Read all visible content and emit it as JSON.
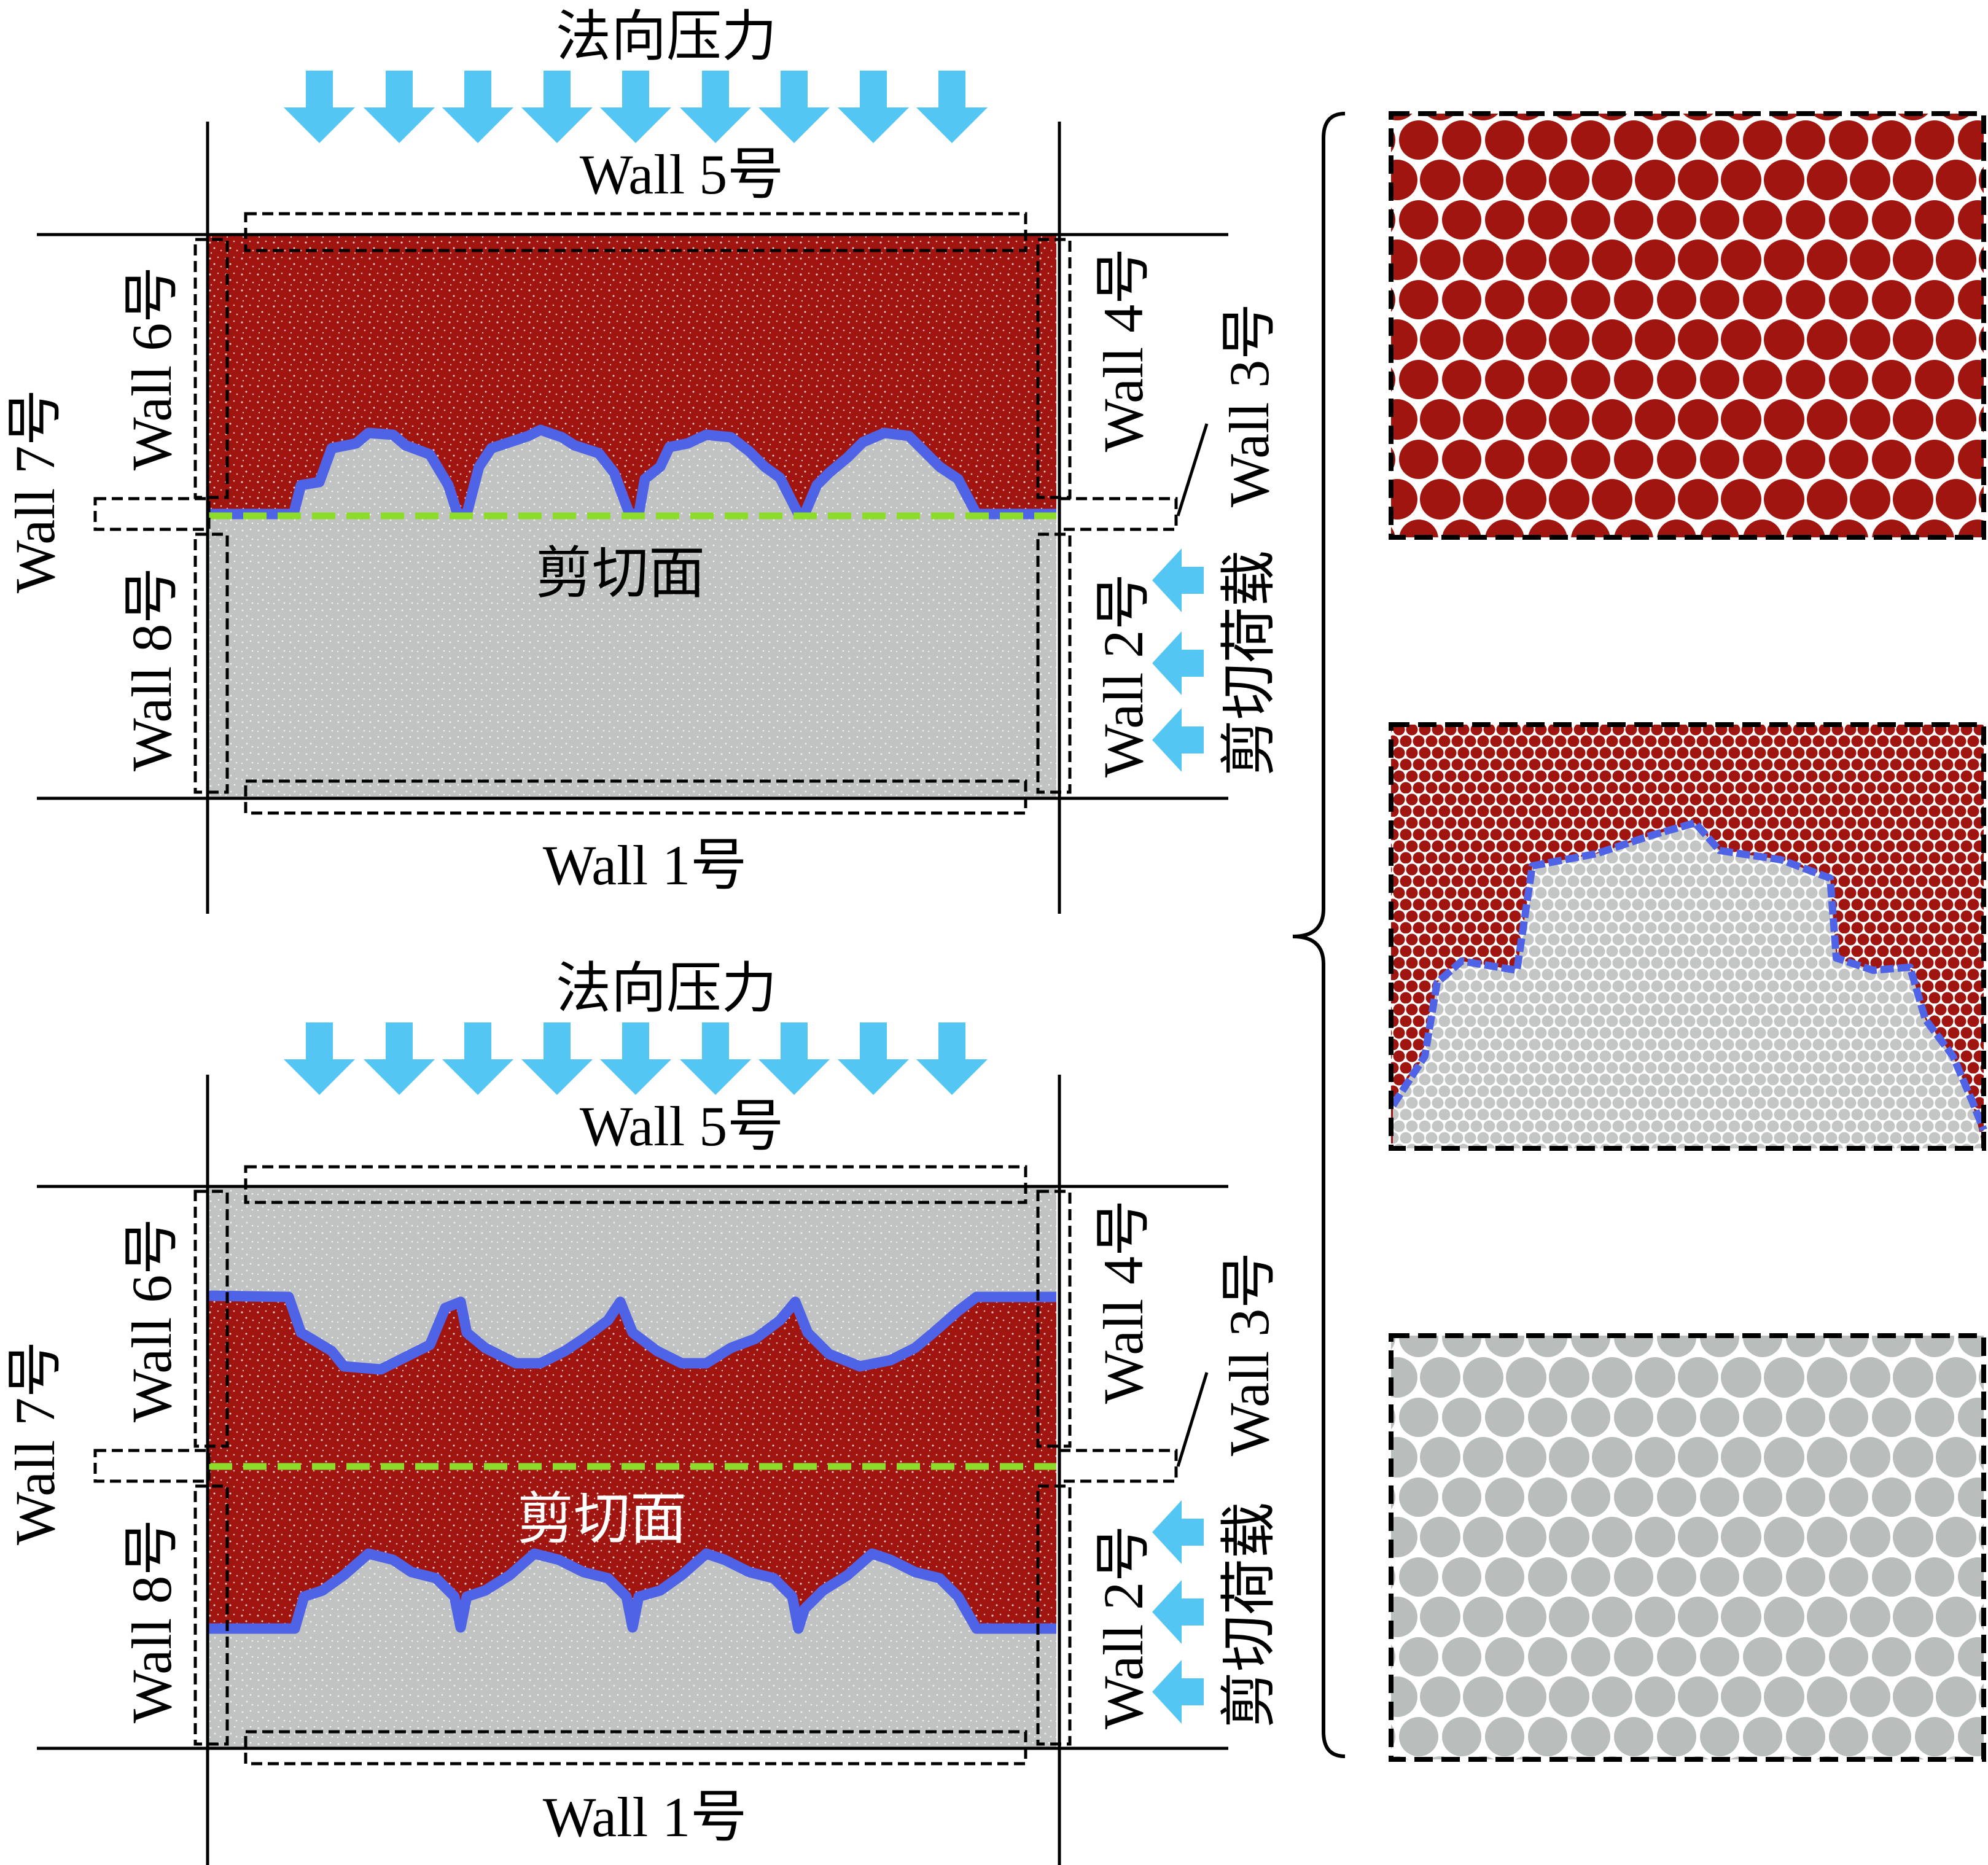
{
  "colors": {
    "red_region": "#a01510",
    "grey_region": "#c0c3c2",
    "interface_line": "#4f63e6",
    "shear_plane": "#8ddc2c",
    "arrow": "#53c6f4",
    "frame": "#000000"
  },
  "top_panel": {
    "normal_pressure_label": "法向压力",
    "wall_5": "Wall 5号",
    "wall_1": "Wall 1号",
    "wall_6": "Wall 6号",
    "wall_7": "Wall 7号",
    "wall_8": "Wall 8号",
    "wall_4": "Wall 4号",
    "wall_3": "Wall 3号",
    "wall_2": "Wall 2号",
    "shear_plane_label": "剪切面",
    "shear_load_label": "剪切荷载"
  },
  "bottom_panel": {
    "normal_pressure_label": "法向压力",
    "wall_5": "Wall 5号",
    "wall_1": "Wall 1号",
    "wall_6": "Wall 6号",
    "wall_7": "Wall 7号",
    "wall_8": "Wall 8号",
    "wall_4": "Wall 4号",
    "wall_3": "Wall 3号",
    "wall_2": "Wall 2号",
    "shear_plane_label": "剪切面",
    "shear_load_label": "剪切荷载"
  },
  "insets": [
    {
      "name": "red-particles",
      "color": "#a01510"
    },
    {
      "name": "interface-particles",
      "color": "mixed"
    },
    {
      "name": "grey-particles",
      "color": "#b9bdbc"
    }
  ]
}
